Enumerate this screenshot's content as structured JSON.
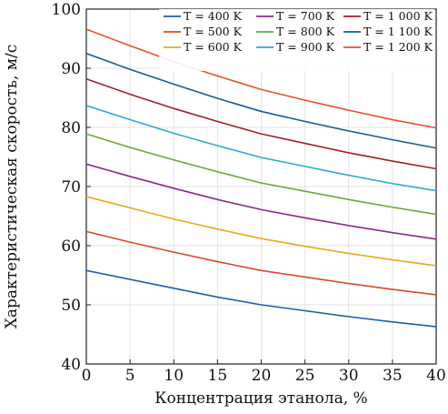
{
  "chart_data": {
    "type": "line",
    "xlabel": "Концентрация этанола, %",
    "ylabel": "Характеристическая скорость, м/с",
    "xlim": [
      0,
      40
    ],
    "ylim": [
      40,
      100
    ],
    "x_ticks": [
      "0",
      "5",
      "10",
      "15",
      "20",
      "25",
      "30",
      "35",
      "40"
    ],
    "y_ticks": [
      "40",
      "50",
      "60",
      "70",
      "80",
      "90",
      "100"
    ],
    "grid": true,
    "legend_position": "top-right",
    "x": [
      0,
      5,
      10,
      15,
      20,
      25,
      30,
      35,
      40
    ],
    "series": [
      {
        "name": "T = 400 K",
        "color": "#1f5fa8",
        "values": [
          55.8,
          54.3,
          52.8,
          51.3,
          50.0,
          49.0,
          48.0,
          47.1,
          46.3
        ]
      },
      {
        "name": "T = 500 K",
        "color": "#d94a2a",
        "values": [
          62.4,
          60.6,
          58.9,
          57.3,
          55.8,
          54.7,
          53.6,
          52.6,
          51.7
        ]
      },
      {
        "name": "T = 600 K",
        "color": "#e8a91c",
        "values": [
          68.3,
          66.4,
          64.5,
          62.8,
          61.2,
          59.9,
          58.7,
          57.6,
          56.6
        ]
      },
      {
        "name": "T = 700 K",
        "color": "#8a2a8a",
        "values": [
          73.8,
          71.7,
          69.7,
          67.8,
          66.1,
          64.7,
          63.4,
          62.2,
          61.1
        ]
      },
      {
        "name": "T = 800 K",
        "color": "#6aa83a",
        "values": [
          78.9,
          76.6,
          74.5,
          72.5,
          70.6,
          69.2,
          67.8,
          66.5,
          65.3
        ]
      },
      {
        "name": "T = 900 K",
        "color": "#2aa8d8",
        "values": [
          83.7,
          81.3,
          79.0,
          76.9,
          74.9,
          73.4,
          71.9,
          70.5,
          69.3
        ]
      },
      {
        "name": "T = 1 000 K",
        "color": "#a0202a",
        "values": [
          88.2,
          85.6,
          83.2,
          81.0,
          78.9,
          77.3,
          75.7,
          74.3,
          73.0
        ]
      },
      {
        "name": "T = 1 100 K",
        "color": "#1a5a98",
        "values": [
          92.5,
          89.8,
          87.3,
          84.9,
          82.7,
          81.0,
          79.4,
          77.9,
          76.5
        ]
      },
      {
        "name": "T = 1 200 K",
        "color": "#e8502a",
        "values": [
          96.6,
          93.8,
          91.1,
          88.7,
          86.4,
          84.6,
          82.9,
          81.3,
          79.9
        ]
      }
    ]
  }
}
